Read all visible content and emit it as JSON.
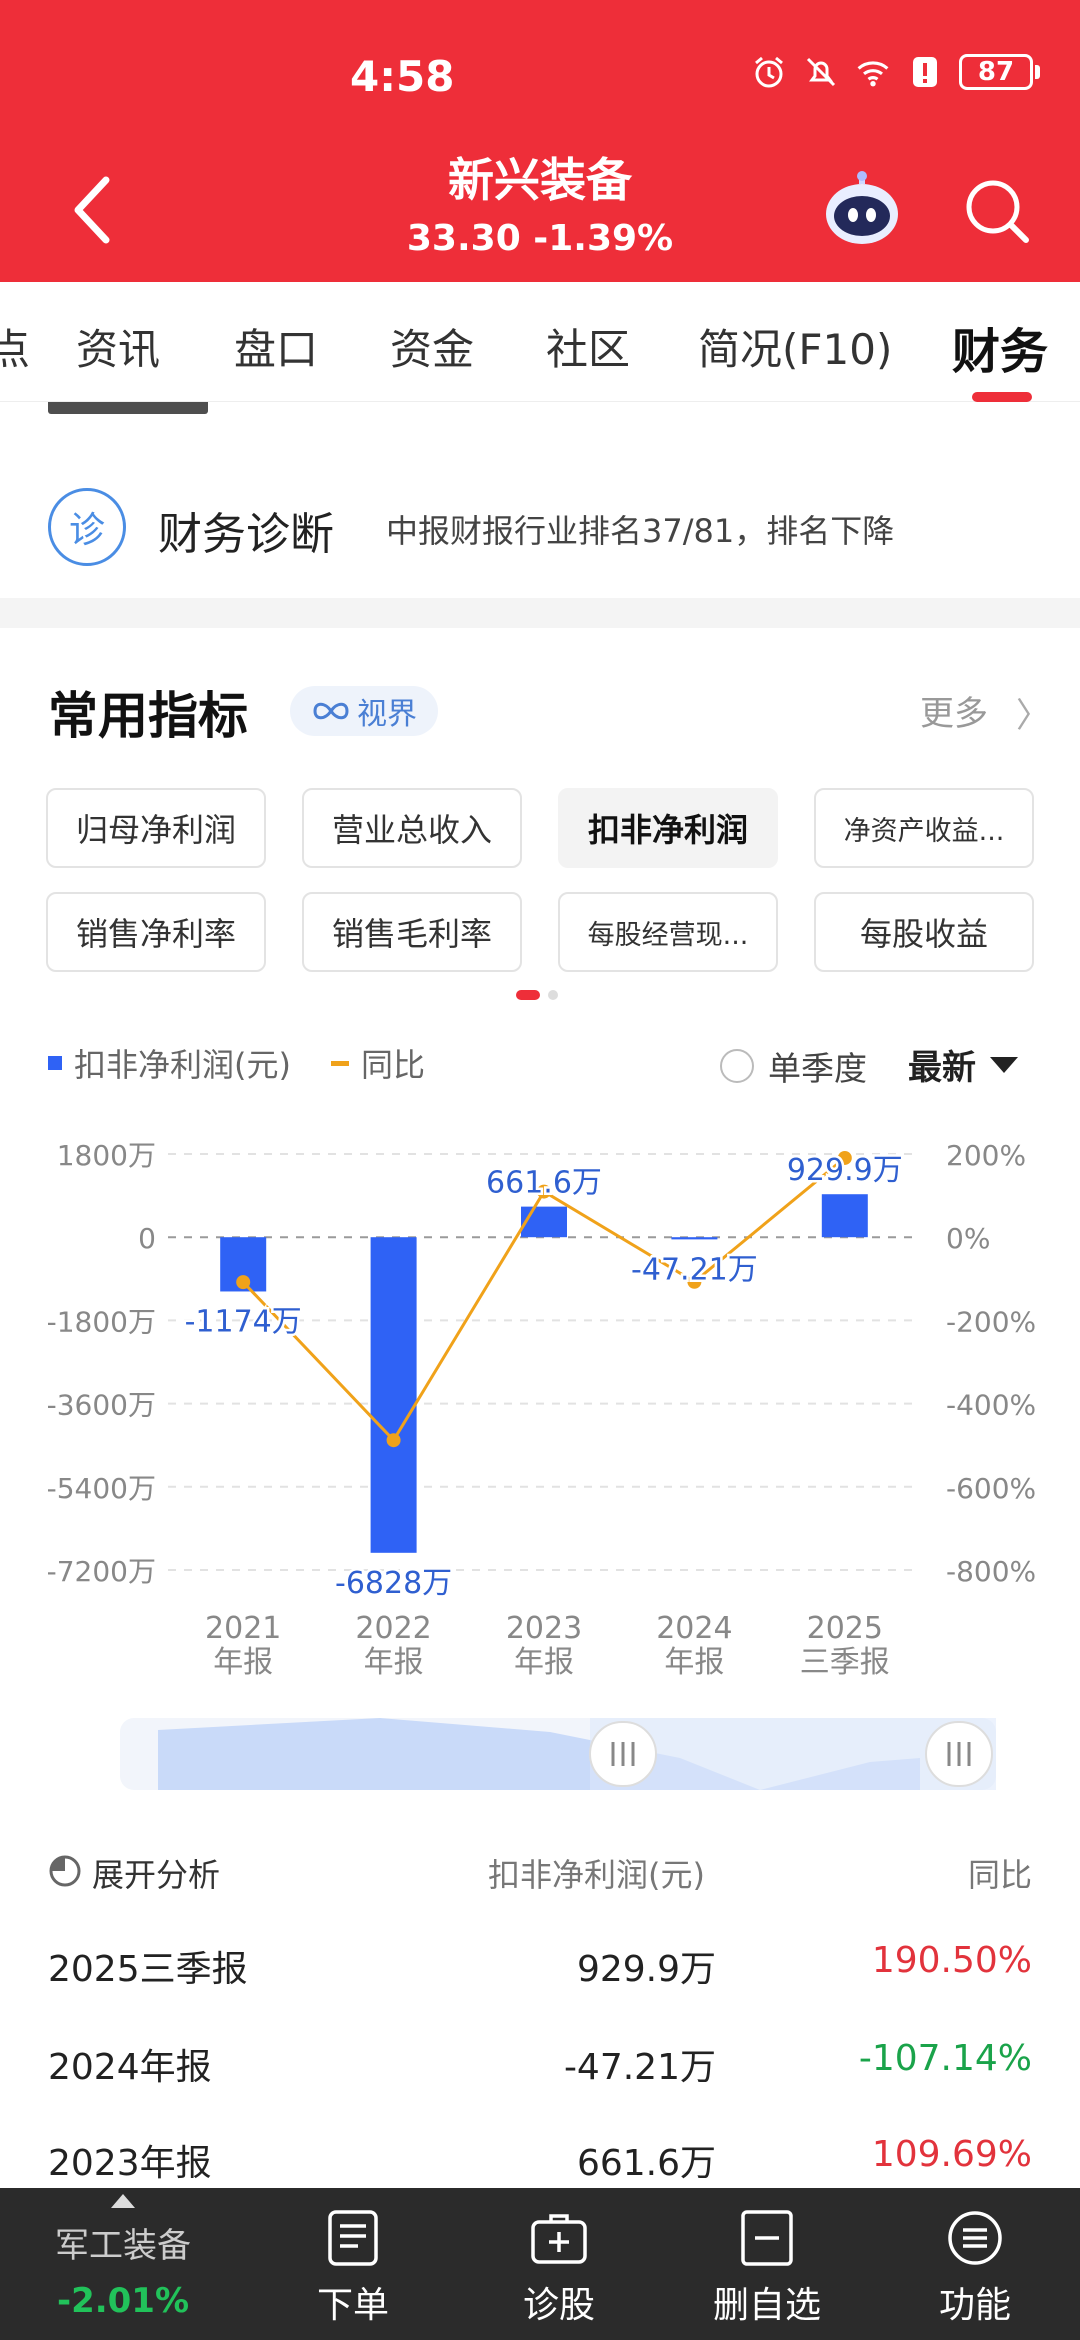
{
  "status": {
    "time": "4:58",
    "battery": "87"
  },
  "header": {
    "name": "新兴装备",
    "price_line": "33.30 -1.39%"
  },
  "tabs": [
    {
      "label": "点"
    },
    {
      "label": "资讯"
    },
    {
      "label": "盘口"
    },
    {
      "label": "资金"
    },
    {
      "label": "社区"
    },
    {
      "label": "简况(F10)"
    },
    {
      "label": "财务",
      "active": true
    }
  ],
  "diagnosis": {
    "icon_char": "诊",
    "title": "财务诊断",
    "desc": "中报财报行业排名37/81，排名下降"
  },
  "indicators": {
    "title": "常用指标",
    "badge": "视界",
    "more": "更多",
    "chips": [
      "归母净利润",
      "营业总收入",
      "扣非净利润",
      "净资产收益...",
      "销售净利率",
      "销售毛利率",
      "每股经营现...",
      "每股收益"
    ],
    "selected_chip": "扣非净利润"
  },
  "legend": {
    "bar_label": "扣非净利润(元)",
    "line_label": "同比",
    "season_label": "单季度",
    "latest_label": "最新"
  },
  "chart_data": {
    "type": "bar+line",
    "categories": [
      "2021 年报",
      "2022 年报",
      "2023 年报",
      "2024 年报",
      "2025 三季报"
    ],
    "category_lines": [
      [
        "2021",
        "年报"
      ],
      [
        "2022",
        "年报"
      ],
      [
        "2023",
        "年报"
      ],
      [
        "2024",
        "年报"
      ],
      [
        "2025",
        "三季报"
      ]
    ],
    "series": [
      {
        "name": "扣非净利润(元)",
        "kind": "bar",
        "axis": "left",
        "values": [
          -1174,
          -6828,
          661.6,
          -47.21,
          929.9
        ],
        "labels": [
          "-1174万",
          "-6828万",
          "661.6万",
          "-47.21万",
          "929.9万"
        ],
        "color": "#2f62f5"
      },
      {
        "name": "同比",
        "kind": "line",
        "axis": "right",
        "values": [
          -108,
          -488,
          109.69,
          -107.14,
          190.5
        ],
        "color": "#f0a21a"
      }
    ],
    "left_axis": {
      "ticks": [
        1800,
        0,
        -1800,
        -3600,
        -5400,
        -7200
      ],
      "tick_labels": [
        "1800万",
        "0",
        "-1800万",
        "-3600万",
        "-5400万",
        "-7200万"
      ],
      "range": [
        -7200,
        1800
      ]
    },
    "right_axis": {
      "ticks": [
        200,
        0,
        -200,
        -400,
        -600,
        -800
      ],
      "tick_labels": [
        "200%",
        "0%",
        "-200%",
        "-400%",
        "-600%",
        "-800%"
      ],
      "range": [
        -800,
        200
      ]
    }
  },
  "table": {
    "head": {
      "expand": "展开分析",
      "col_value": "扣非净利润(元)",
      "col_yoy": "同比"
    },
    "rows": [
      {
        "period": "2025三季报",
        "value": "929.9万",
        "yoy": "190.50%",
        "dir": "pos"
      },
      {
        "period": "2024年报",
        "value": "-47.21万",
        "yoy": "-107.14%",
        "dir": "neg"
      },
      {
        "period": "2023年报",
        "value": "661.6万",
        "yoy": "109.69%",
        "dir": "pos"
      }
    ]
  },
  "bottombar": {
    "sector_name": "军工装备",
    "sector_change": "-2.01%",
    "items": [
      {
        "label": "下单"
      },
      {
        "label": "诊股"
      },
      {
        "label": "删自选"
      },
      {
        "label": "功能"
      }
    ]
  }
}
